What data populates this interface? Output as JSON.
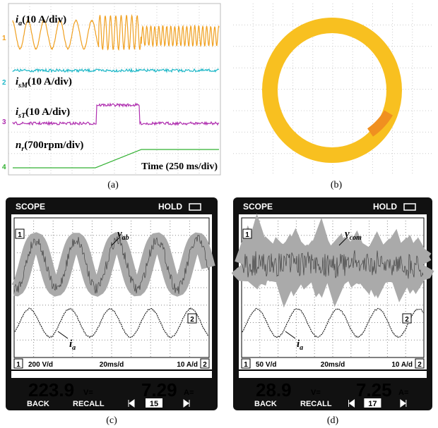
{
  "panel_a": {
    "traces": [
      {
        "symbol": "i",
        "sub": "a",
        "scale": "(10 A/div)"
      },
      {
        "symbol": "i",
        "sub": "sM",
        "scale": "(10 A/div)"
      },
      {
        "symbol": "i",
        "sub": "sT",
        "scale": "(10 A/div)"
      },
      {
        "symbol": "n",
        "sub": "r",
        "scale": "(700rpm/div)"
      }
    ],
    "markers": [
      "1",
      "2",
      "3",
      "4"
    ],
    "time": "Time (250 ms/div)",
    "caption": "(a)"
  },
  "panel_b": {
    "caption": "(b)"
  },
  "panel_c": {
    "mode": "SCOPE",
    "status": "HOLD",
    "trace1_marker": "1",
    "trace2_marker": "2",
    "voltage_label": {
      "symbol": "v",
      "sub": "ab"
    },
    "current_label": {
      "symbol": "i",
      "sub": "a"
    },
    "ch1_index": "1",
    "ch1_scale": "200 V/d",
    "timebase": "20ms/d",
    "ch2_scale": "10 A/d",
    "ch2_index": "2",
    "reading1": "223.9",
    "unit1": "V=",
    "reading2": "7.29",
    "unit2": "A=",
    "softkeys": [
      "BACK",
      "RECALL",
      "15"
    ],
    "caption": "(c)"
  },
  "panel_d": {
    "mode": "SCOPE",
    "status": "HOLD",
    "trace1_marker": "1",
    "trace2_marker": "2",
    "voltage_label": {
      "symbol": "v",
      "sub": "com"
    },
    "current_label": {
      "symbol": "i",
      "sub": "a"
    },
    "ch1_index": "1",
    "ch1_scale": "50 V/d",
    "timebase": "20ms/d",
    "ch2_scale": "10 A/d",
    "ch2_index": "2",
    "reading1": "28.9",
    "unit1": "V=",
    "reading2": "7.25",
    "unit2": "A=",
    "softkeys": [
      "BACK",
      "RECALL",
      "17"
    ],
    "caption": "(d)"
  }
}
